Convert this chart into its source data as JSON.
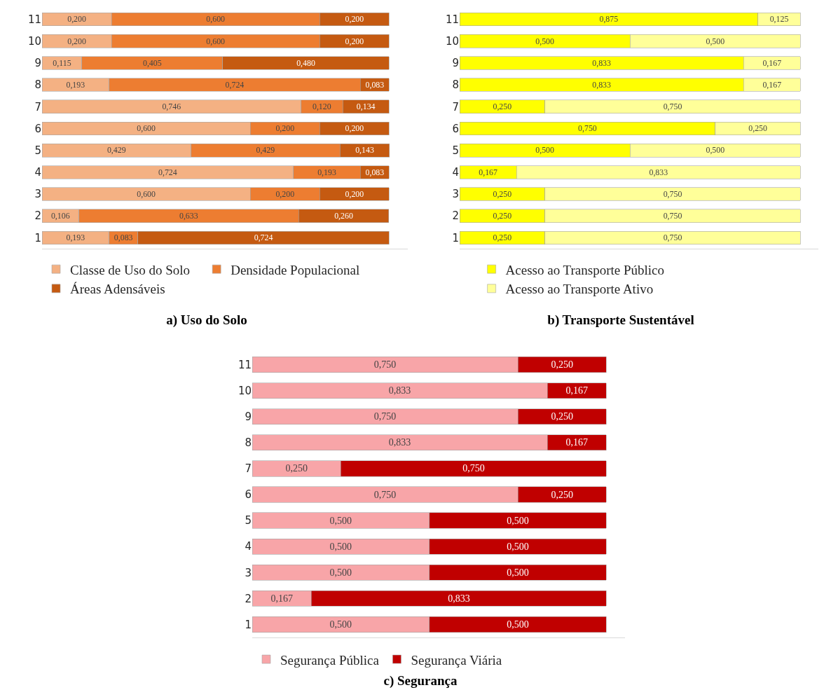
{
  "chart_data": [
    {
      "type": "bar",
      "orientation": "horizontal",
      "stacked": true,
      "title": "a) Uso do Solo",
      "legend": "bottom",
      "categories": [
        "11",
        "10",
        "9",
        "8",
        "7",
        "6",
        "5",
        "4",
        "3",
        "2",
        "1"
      ],
      "series": [
        {
          "name": "Classe de Uso do Solo",
          "color": "#f4b183",
          "values": [
            0.2,
            0.2,
            0.115,
            0.193,
            0.746,
            0.6,
            0.429,
            0.724,
            0.6,
            0.106,
            0.193
          ],
          "value_labels": [
            "0,200",
            "0,200",
            "0,115",
            "0,193",
            "0,746",
            "0,600",
            "0,429",
            "0,724",
            "0,600",
            "0,106",
            "0,193"
          ]
        },
        {
          "name": "Densidade Populacional",
          "color": "#ed7d31",
          "values": [
            0.6,
            0.6,
            0.405,
            0.724,
            0.12,
            0.2,
            0.429,
            0.193,
            0.2,
            0.633,
            0.083
          ],
          "value_labels": [
            "0,600",
            "0,600",
            "0,405",
            "0,724",
            "0,120",
            "0,200",
            "0,429",
            "0,193",
            "0,200",
            "0,633",
            "0,083"
          ]
        },
        {
          "name": "Áreas Adensáveis",
          "color": "#c55a11",
          "values": [
            0.2,
            0.2,
            0.48,
            0.083,
            0.134,
            0.2,
            0.143,
            0.083,
            0.2,
            0.26,
            0.724
          ],
          "value_labels": [
            "0,200",
            "0,200",
            "0,480",
            "0,083",
            "0,134",
            "0,200",
            "0,143",
            "0,083",
            "0,200",
            "0,260",
            "0,724"
          ]
        }
      ]
    },
    {
      "type": "bar",
      "orientation": "horizontal",
      "stacked": true,
      "title": "b) Transporte Sustentável",
      "legend": "bottom",
      "categories": [
        "11",
        "10",
        "9",
        "8",
        "7",
        "6",
        "5",
        "4",
        "3",
        "2",
        "1"
      ],
      "series": [
        {
          "name": "Acesso ao Transporte Público",
          "color": "#ffff00",
          "values": [
            0.875,
            0.5,
            0.833,
            0.833,
            0.25,
            0.75,
            0.5,
            0.167,
            0.25,
            0.25,
            0.25
          ],
          "value_labels": [
            "0,875",
            "0,500",
            "0,833",
            "0,833",
            "0,250",
            "0,750",
            "0,500",
            "0,167",
            "0,250",
            "0,250",
            "0,250"
          ]
        },
        {
          "name": "Acesso ao Transporte Ativo",
          "color": "#ffff99",
          "values": [
            0.125,
            0.5,
            0.167,
            0.167,
            0.75,
            0.25,
            0.5,
            0.833,
            0.75,
            0.75,
            0.75
          ],
          "value_labels": [
            "0,125",
            "0,500",
            "0,167",
            "0,167",
            "0,750",
            "0,250",
            "0,500",
            "0,833",
            "0,750",
            "0,750",
            "0,750"
          ]
        }
      ]
    },
    {
      "type": "bar",
      "orientation": "horizontal",
      "stacked": true,
      "title": "c) Segurança",
      "legend": "bottom",
      "categories": [
        "11",
        "10",
        "9",
        "8",
        "7",
        "6",
        "5",
        "4",
        "3",
        "2",
        "1"
      ],
      "series": [
        {
          "name": "Segurança Pública",
          "color": "#f8a5a8",
          "values": [
            0.75,
            0.833,
            0.75,
            0.833,
            0.25,
            0.75,
            0.5,
            0.5,
            0.5,
            0.167,
            0.5
          ],
          "value_labels": [
            "0,750",
            "0,833",
            "0,750",
            "0,833",
            "0,250",
            "0,750",
            "0,500",
            "0,500",
            "0,500",
            "0,167",
            "0,500"
          ]
        },
        {
          "name": "Segurança Viária",
          "color": "#c00000",
          "values": [
            0.25,
            0.167,
            0.25,
            0.167,
            0.75,
            0.25,
            0.5,
            0.5,
            0.5,
            0.833,
            0.5
          ],
          "value_labels": [
            "0,250",
            "0,167",
            "0,250",
            "0,167",
            "0,750",
            "0,250",
            "0,500",
            "0,500",
            "0,500",
            "0,833",
            "0,500"
          ]
        }
      ]
    }
  ]
}
